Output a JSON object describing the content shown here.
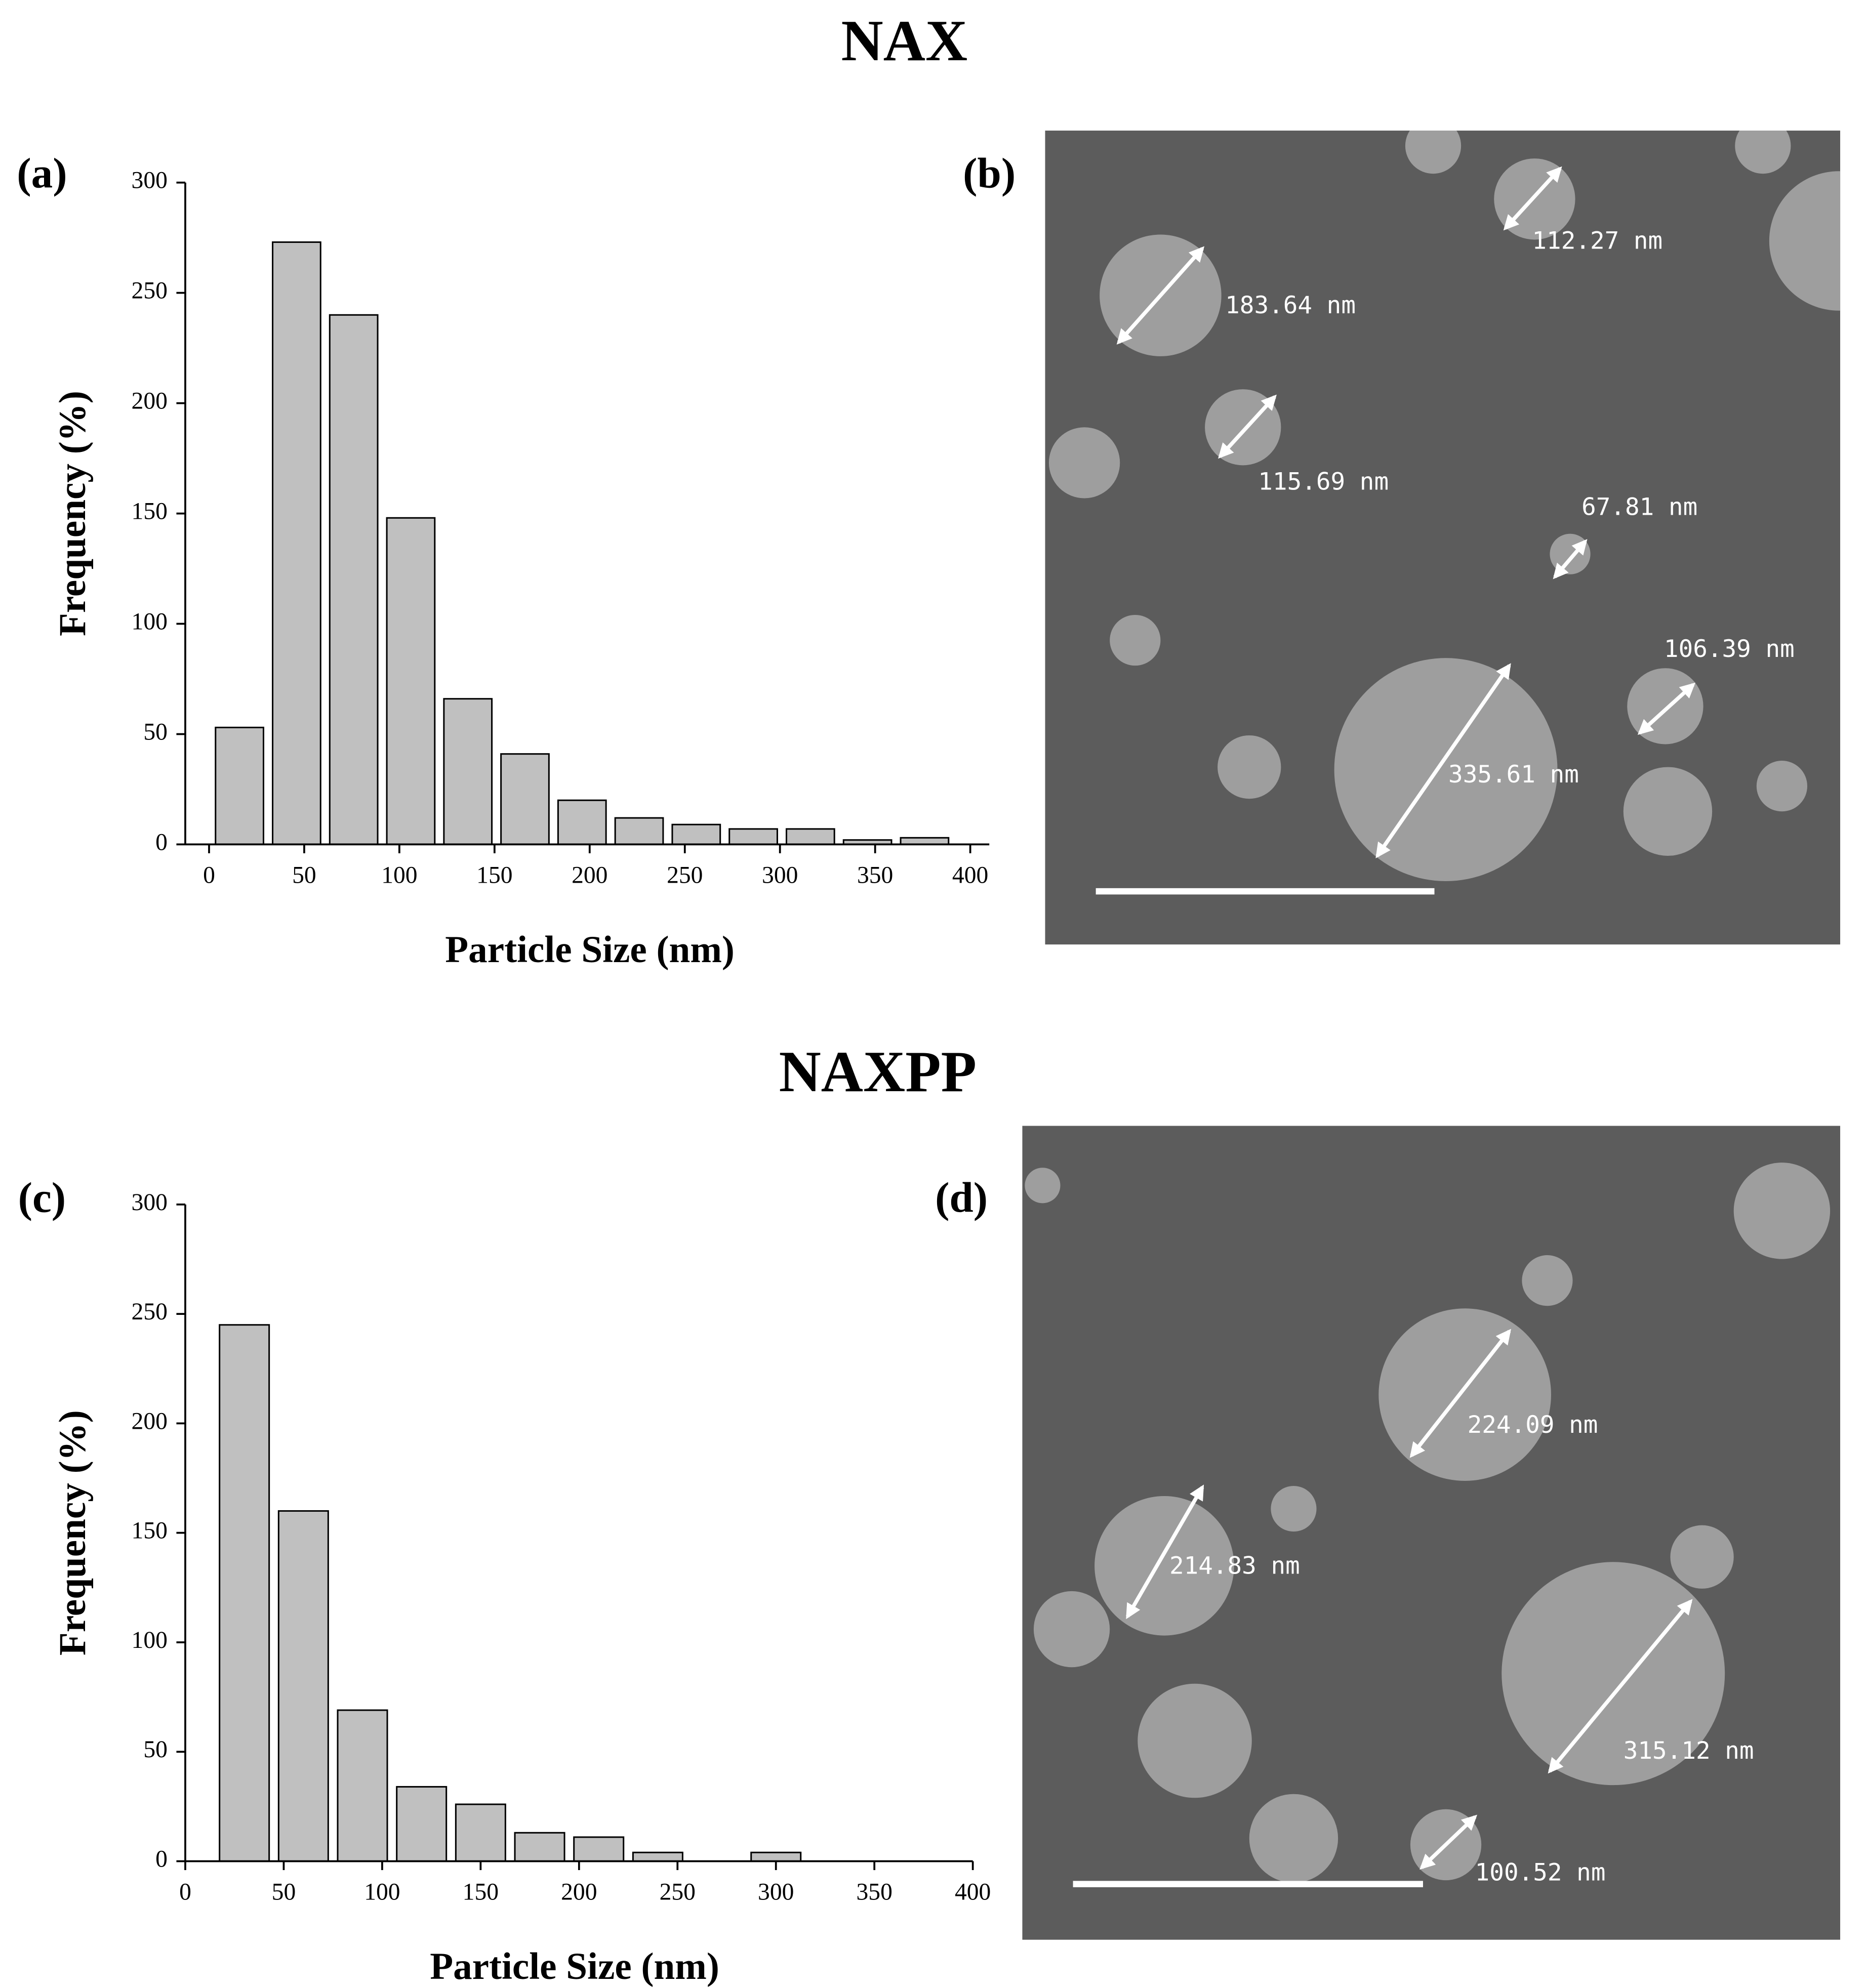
{
  "figure": {
    "titles": [
      "NAX",
      "NAXPP"
    ],
    "panels": [
      "(a)",
      "(b)",
      "(c)",
      "(d)"
    ]
  },
  "chart_data": [
    {
      "type": "histogram",
      "xlabel": "Particle Size (nm)",
      "ylabel": "Frequency (%)",
      "bins": [
        1,
        31,
        61,
        91,
        121,
        151,
        181,
        211,
        241,
        271,
        301,
        331,
        361,
        391
      ],
      "counts": [
        53,
        273,
        240,
        148,
        66,
        41,
        20,
        12,
        9,
        7,
        7,
        2,
        3
      ],
      "color": "#c0c0c0",
      "xlim": [
        -12.5,
        410
      ],
      "ylim": [
        0,
        300
      ],
      "xticks": [
        0,
        50,
        100,
        150,
        200,
        250,
        300,
        350,
        400
      ],
      "yticks": [
        0,
        50,
        100,
        150,
        200,
        250,
        300
      ]
    },
    {
      "type": "histogram",
      "xlabel": "Particle Size (nm)",
      "ylabel": "Frequency (%)",
      "bins": [
        15,
        45,
        75,
        105,
        135,
        165,
        195,
        225,
        255,
        285,
        315
      ],
      "counts": [
        245,
        160,
        69,
        34,
        26,
        13,
        11,
        4,
        0,
        4
      ],
      "color": "#c0c0c0",
      "xlim": [
        0,
        400
      ],
      "ylim": [
        0,
        300
      ],
      "xticks": [
        0,
        50,
        100,
        150,
        200,
        250,
        300,
        350,
        400
      ],
      "yticks": [
        0,
        50,
        100,
        150,
        200,
        250,
        300
      ]
    }
  ],
  "micrographs": [
    {
      "annotations": [
        "183.64 nm",
        "112.27 nm",
        "115.69 nm",
        "67.81 nm",
        "106.39 nm",
        "335.61 nm"
      ]
    },
    {
      "annotations": [
        "224.09 nm",
        "214.83 nm",
        "315.12 nm",
        "100.52 nm"
      ]
    }
  ]
}
